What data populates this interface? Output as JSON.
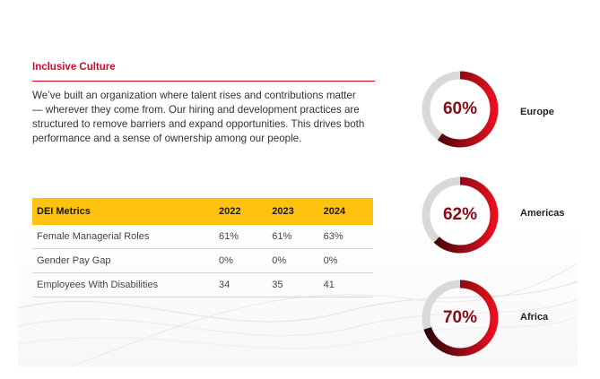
{
  "section": {
    "title": "Inclusive Culture",
    "intro": "We’ve built an organization where talent rises and contributions matter — wherever they come from. Our hiring and development practices are structured to remove barriers and expand opportunities. This drives both performance and a sense of ownership among our people."
  },
  "table": {
    "headers": [
      "DEI Metrics",
      "2022",
      "2023",
      "2024"
    ],
    "rows": [
      [
        "Female Managerial Roles",
        "61%",
        "61%",
        "63%"
      ],
      [
        "Gender Pay Gap",
        "0%",
        "0%",
        "0%"
      ],
      [
        "Employees With Disabilities",
        "34",
        "35",
        "41"
      ]
    ]
  },
  "regions": [
    {
      "label": "Europe",
      "percent_text": "60%",
      "value": 0.6
    },
    {
      "label": "Americas",
      "percent_text": "62%",
      "value": 0.62
    },
    {
      "label": "Africa",
      "percent_text": "70%",
      "value": 0.7
    }
  ],
  "colors": {
    "accent_red": "#c8102e",
    "header_yellow": "#ffc20e",
    "ring_track": "#d9d9d9",
    "ring_dark": "#2a0308",
    "ring_bright": "#e8101f"
  }
}
